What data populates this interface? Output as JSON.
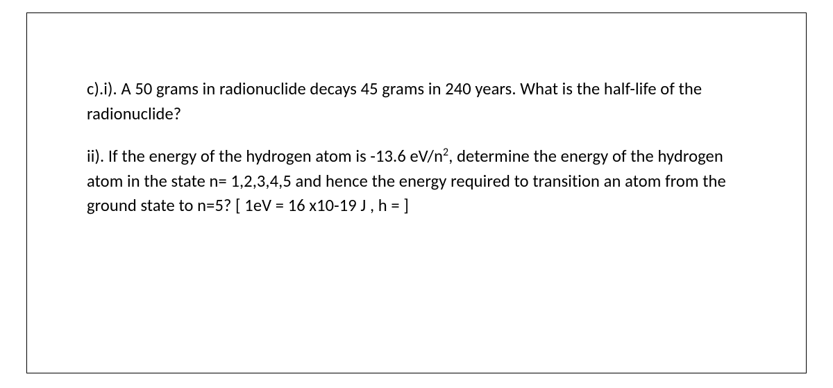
{
  "doc": {
    "part_c_i": {
      "label": "c).i).",
      "text": "A 50 grams in radionuclide decays 45 grams in 240 years. What is the half-life of the radionuclide?"
    },
    "part_c_ii": {
      "label": "ii).",
      "prefix": "If the  energy of the hydrogen atom is -13.6 eV/n",
      "sup": "2",
      "suffix": ", determine the energy of the hydrogen atom in the state n= 1,2,3,4,5 and hence the energy required to transition an atom from the ground state to n=5? [ 1eV = 16 x10-19 J , h = ]"
    }
  },
  "style": {
    "font_family": "Calibri",
    "font_size_pt": 18,
    "text_color": "#000000",
    "background_color": "#ffffff",
    "border_color": "#000000"
  }
}
